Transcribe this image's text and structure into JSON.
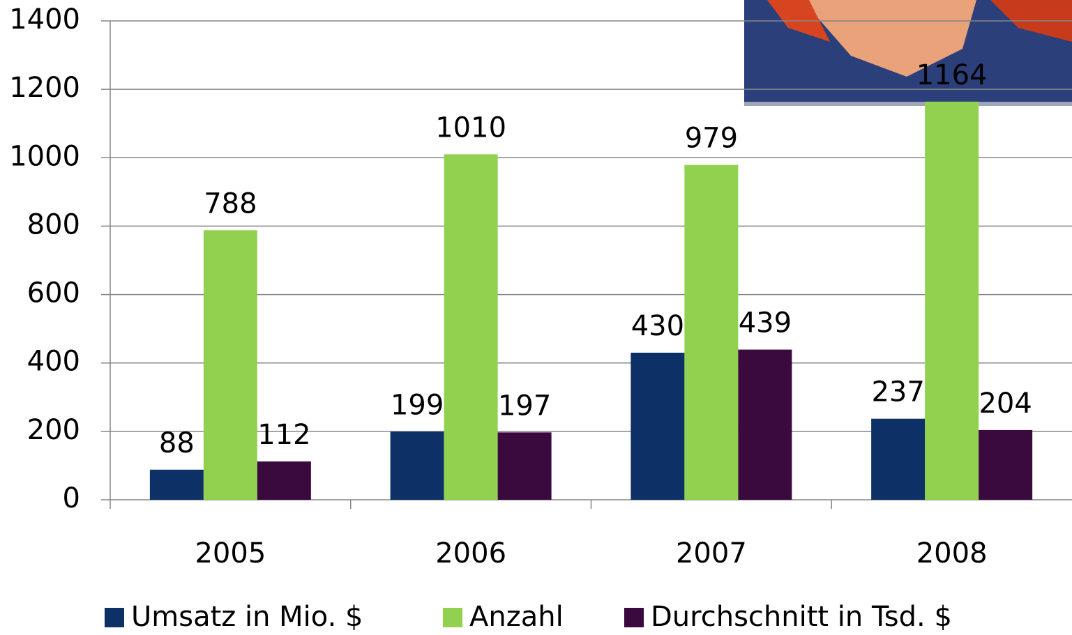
{
  "chart_data": {
    "type": "bar",
    "categories": [
      "2005",
      "2006",
      "2007",
      "2008"
    ],
    "series": [
      {
        "name": "Umsatz in Mio. $",
        "color": "#0d3166",
        "values": [
          88,
          199,
          430,
          237
        ]
      },
      {
        "name": "Anzahl",
        "color": "#92d050",
        "values": [
          788,
          1010,
          979,
          1164
        ]
      },
      {
        "name": "Durchschnitt in Tsd. $",
        "color": "#3a0a3e",
        "values": [
          112,
          197,
          439,
          204
        ]
      }
    ],
    "ylim": [
      0,
      1400
    ],
    "yticks": [
      0,
      200,
      400,
      600,
      800,
      1000,
      1200,
      1400
    ],
    "grid": true,
    "legend": "bottom"
  }
}
